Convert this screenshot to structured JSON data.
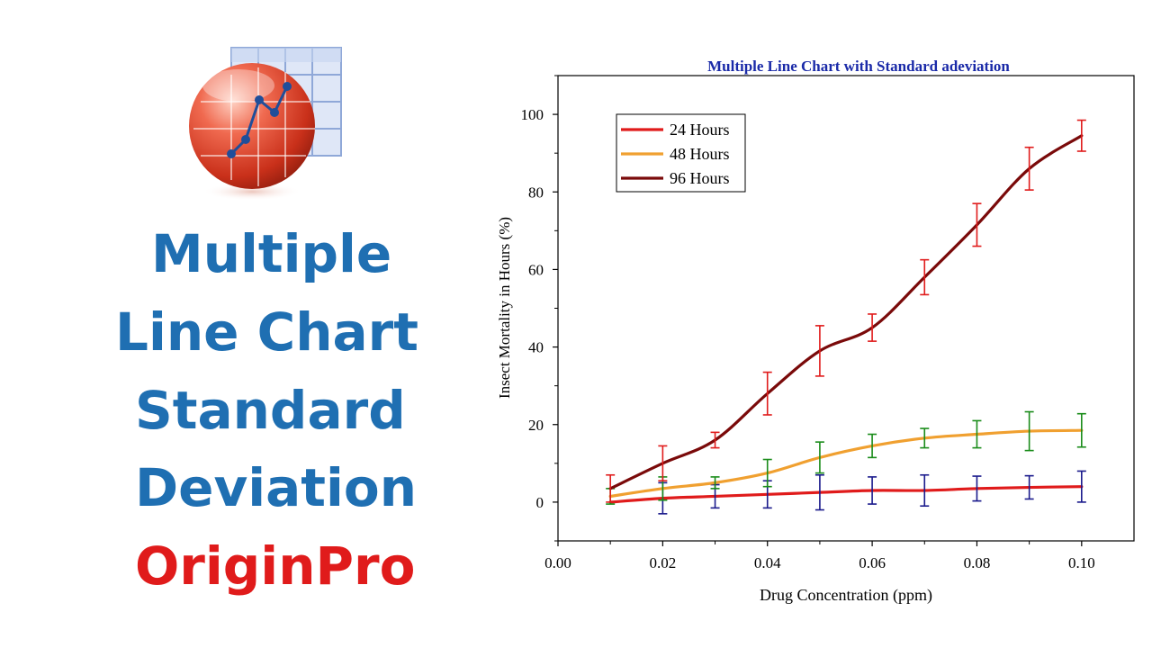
{
  "headline": {
    "line1": "Multiple",
    "line2": "Line Chart",
    "line3": "Standard",
    "line4": "Deviation",
    "line5": "OriginPro"
  },
  "colors": {
    "headline_blue": "#1f6fb2",
    "headline_red": "#e01b1b",
    "chart_title": "#1a2aa8"
  },
  "chart_data": {
    "type": "line",
    "title": "Multiple Line Chart with Standard adeviation",
    "xlabel": "Drug Concentration (ppm)",
    "ylabel": "Insect Mortality in Hours (%)",
    "xlim": [
      0,
      0.11
    ],
    "ylim": [
      -10,
      110
    ],
    "xticks": [
      0.0,
      0.02,
      0.04,
      0.06,
      0.08,
      0.1
    ],
    "xtick_labels": [
      "0.00",
      "0.02",
      "0.04",
      "0.06",
      "0.08",
      "0.10"
    ],
    "yticks": [
      0,
      20,
      40,
      60,
      80,
      100
    ],
    "ytick_labels": [
      "0",
      "20",
      "40",
      "60",
      "80",
      "100"
    ],
    "legend_position": "top-left",
    "x": [
      0.01,
      0.02,
      0.03,
      0.04,
      0.05,
      0.06,
      0.07,
      0.08,
      0.09,
      0.1
    ],
    "series": [
      {
        "name": "24 Hours",
        "color": "#e01b1b",
        "errcolor": "#1a1a8c",
        "values": [
          0,
          1,
          1.5,
          2,
          2.5,
          3,
          3,
          3.5,
          3.8,
          4
        ],
        "err": [
          0,
          4,
          3,
          3.5,
          4.5,
          3.5,
          4,
          3.2,
          3,
          4
        ]
      },
      {
        "name": "48 Hours",
        "color": "#f0a030",
        "errcolor": "#1a8c1a",
        "values": [
          1.5,
          3.5,
          5,
          7.5,
          11.5,
          14.5,
          16.5,
          17.5,
          18.3,
          18.5
        ],
        "err": [
          2,
          3,
          1.5,
          3.5,
          4,
          3,
          2.5,
          3.5,
          5,
          4.3
        ]
      },
      {
        "name": "96 Hours",
        "color": "#7a0a0a",
        "errcolor": "#e01b1b",
        "values": [
          3.5,
          10,
          16,
          28,
          39,
          45,
          58,
          71.5,
          86,
          94.5
        ],
        "err": [
          3.5,
          4.5,
          2,
          5.5,
          6.5,
          3.5,
          4.5,
          5.5,
          5.5,
          4
        ]
      }
    ]
  }
}
